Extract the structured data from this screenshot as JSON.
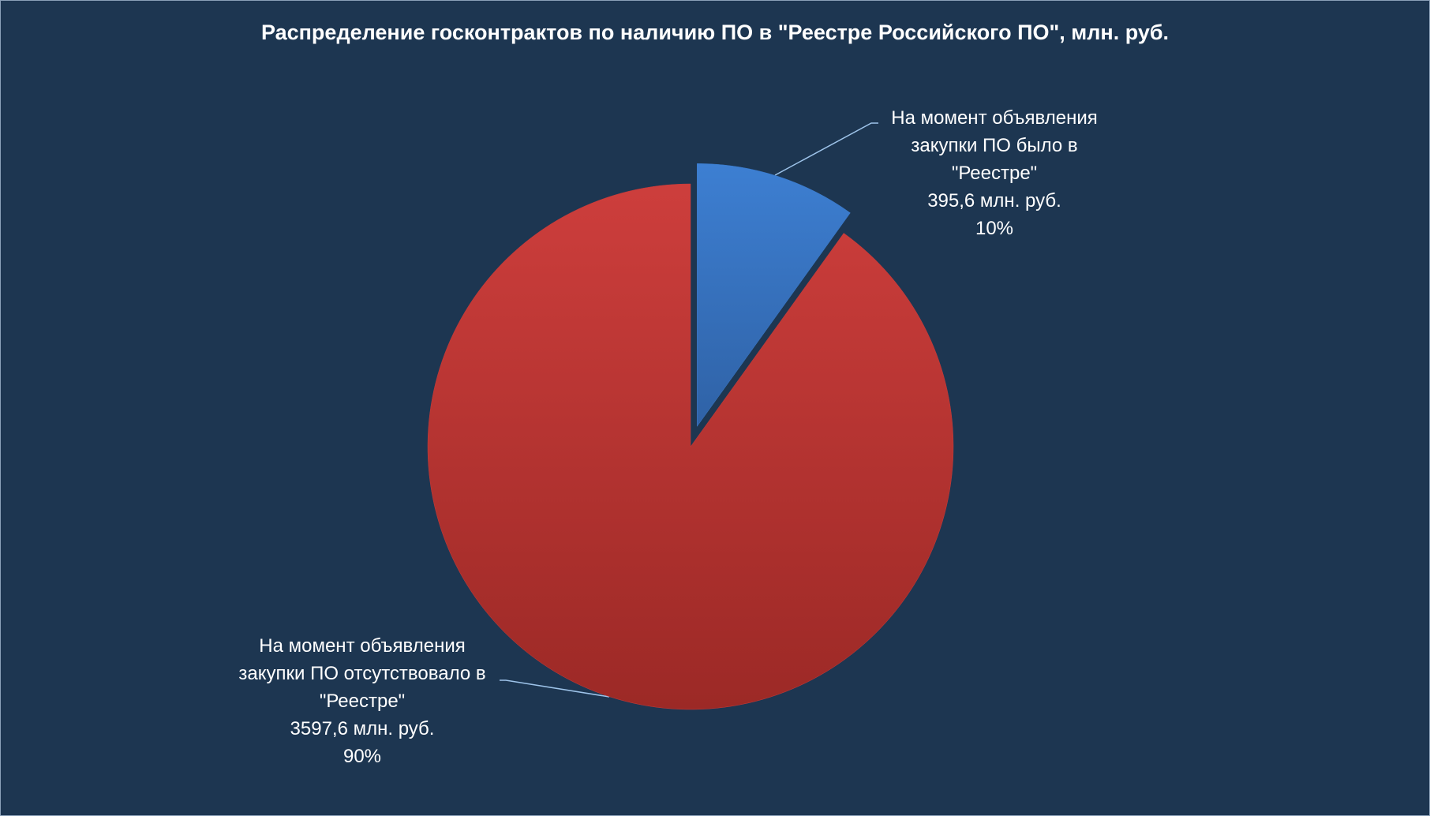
{
  "chart_data": {
    "type": "pie",
    "title": "Распределение госконтрактов по наличию ПО в \"Реестре Российского ПО\", млн. руб.",
    "categories": [
      "На момент объявления закупки ПО было в \"Реестре\"",
      "На момент объявления закупки ПО отсутствовало в \"Реестре\""
    ],
    "values": [
      395.6,
      3597.6
    ],
    "value_labels": [
      "395,6 млн. руб.",
      "3597,6 млн. руб."
    ],
    "percents": [
      10,
      90
    ],
    "percent_labels": [
      "10%",
      "90%"
    ],
    "colors": [
      "#3a7acb",
      "#c83c3a"
    ]
  }
}
